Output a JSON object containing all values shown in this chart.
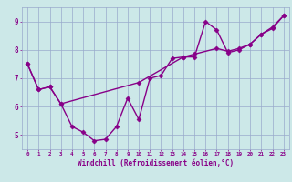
{
  "line1_x": [
    0,
    1,
    2,
    3,
    4,
    5,
    6,
    7,
    8,
    9,
    10,
    11,
    12,
    13,
    14,
    15,
    16,
    17,
    18,
    19,
    20,
    21,
    22,
    23
  ],
  "line1_y": [
    7.5,
    6.6,
    6.7,
    6.1,
    5.3,
    5.1,
    4.8,
    4.85,
    5.3,
    6.3,
    5.55,
    7.0,
    7.1,
    7.7,
    7.75,
    7.75,
    9.0,
    8.7,
    7.9,
    8.0,
    8.2,
    8.55,
    8.8,
    9.2
  ],
  "line2_x": [
    0,
    1,
    2,
    3,
    10,
    14,
    15,
    17,
    18,
    19,
    20,
    21,
    22,
    23
  ],
  "line2_y": [
    7.5,
    6.6,
    6.7,
    6.1,
    6.85,
    7.75,
    7.85,
    8.05,
    7.95,
    8.05,
    8.2,
    8.55,
    8.75,
    9.2
  ],
  "line_color": "#880088",
  "bg_color": "#cce8e8",
  "grid_color": "#99aacc",
  "xlabel": "Windchill (Refroidissement éolien,°C)",
  "xlim_min": -0.5,
  "xlim_max": 23.5,
  "ylim_min": 4.5,
  "ylim_max": 9.5,
  "xticks": [
    0,
    1,
    2,
    3,
    4,
    5,
    6,
    7,
    8,
    9,
    10,
    11,
    12,
    13,
    14,
    15,
    16,
    17,
    18,
    19,
    20,
    21,
    22,
    23
  ],
  "yticks": [
    5,
    6,
    7,
    8,
    9
  ],
  "marker": "D",
  "markersize": 2.5,
  "linewidth": 1.0
}
